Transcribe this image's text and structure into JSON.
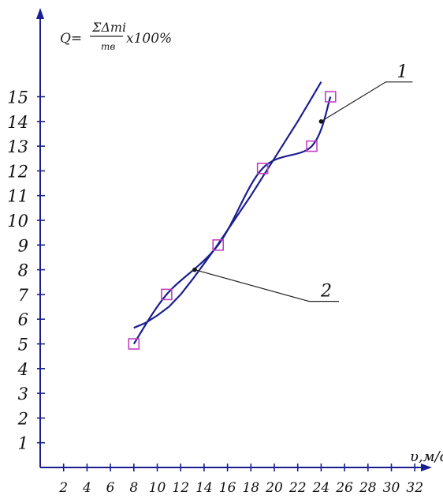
{
  "formula": {
    "lhs": "Q=",
    "numerator": "ΣΔmi",
    "denominator": "mв",
    "factor": "x100%"
  },
  "chart_data": {
    "type": "line",
    "xlabel": "υ,м/с",
    "ylabel": "",
    "x_ticks": [
      "2",
      "4",
      "6",
      "8",
      "10",
      "12",
      "14",
      "16",
      "18",
      "20",
      "22",
      "24",
      "26",
      "28",
      "30",
      "32"
    ],
    "y_ticks": [
      "1",
      "2",
      "3",
      "4",
      "5",
      "6",
      "7",
      "8",
      "9",
      "10",
      "11",
      "12",
      "13",
      "14",
      "15"
    ],
    "xlim": [
      0,
      33
    ],
    "ylim": [
      0,
      16
    ],
    "grid": false,
    "series": [
      {
        "name": "1",
        "marker": "square",
        "x": [
          8,
          10.8,
          15.2,
          19,
          23.2,
          24.8
        ],
        "y": [
          5,
          7,
          9,
          12.1,
          13,
          15
        ]
      },
      {
        "name": "2",
        "marker": "none",
        "x": [
          8,
          9,
          10,
          11,
          12,
          13,
          14,
          15,
          16,
          17,
          18,
          19,
          20,
          21,
          22,
          23,
          24
        ],
        "y": [
          5.65,
          5.85,
          6.15,
          6.5,
          7.0,
          7.6,
          8.25,
          8.9,
          9.6,
          10.3,
          11.0,
          11.75,
          12.5,
          13.25,
          14.0,
          14.8,
          15.6
        ]
      }
    ],
    "annotations": [
      {
        "label": "1",
        "series": "1",
        "point": [
          24,
          14
        ]
      },
      {
        "label": "2",
        "series": "2",
        "point": [
          13.2,
          8.0
        ]
      }
    ],
    "colors": {
      "line": "#1a1f8f",
      "axis": "#1a1f8f",
      "marker": "#c040c0"
    }
  }
}
